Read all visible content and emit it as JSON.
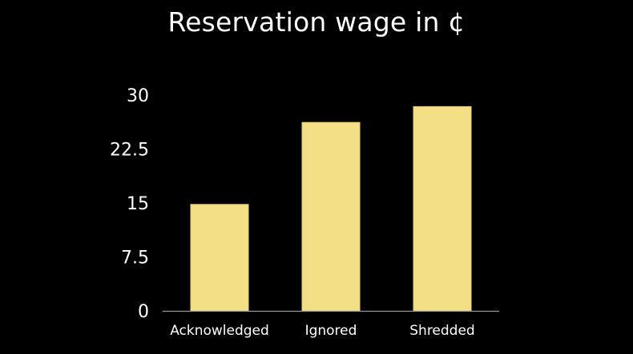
{
  "colors": {
    "background": "#000000",
    "bar": "#f2df86",
    "bar_edge": "#e6cf6c",
    "text": "#ffffff",
    "axis": "#9a9a9a"
  },
  "chart_data": {
    "type": "bar",
    "title": "Reservation wage in ¢",
    "xlabel": "",
    "ylabel": "",
    "categories": [
      "Acknowledged",
      "Ignored",
      "Shredded"
    ],
    "values": [
      14.8,
      26.2,
      28.4
    ],
    "ylim": [
      0,
      30
    ],
    "yticks": [
      0,
      7.5,
      15,
      22.5,
      30
    ],
    "ytick_labels": [
      "0",
      "7.5",
      "15",
      "22.5",
      "30"
    ],
    "grid": false,
    "legend": "none"
  }
}
